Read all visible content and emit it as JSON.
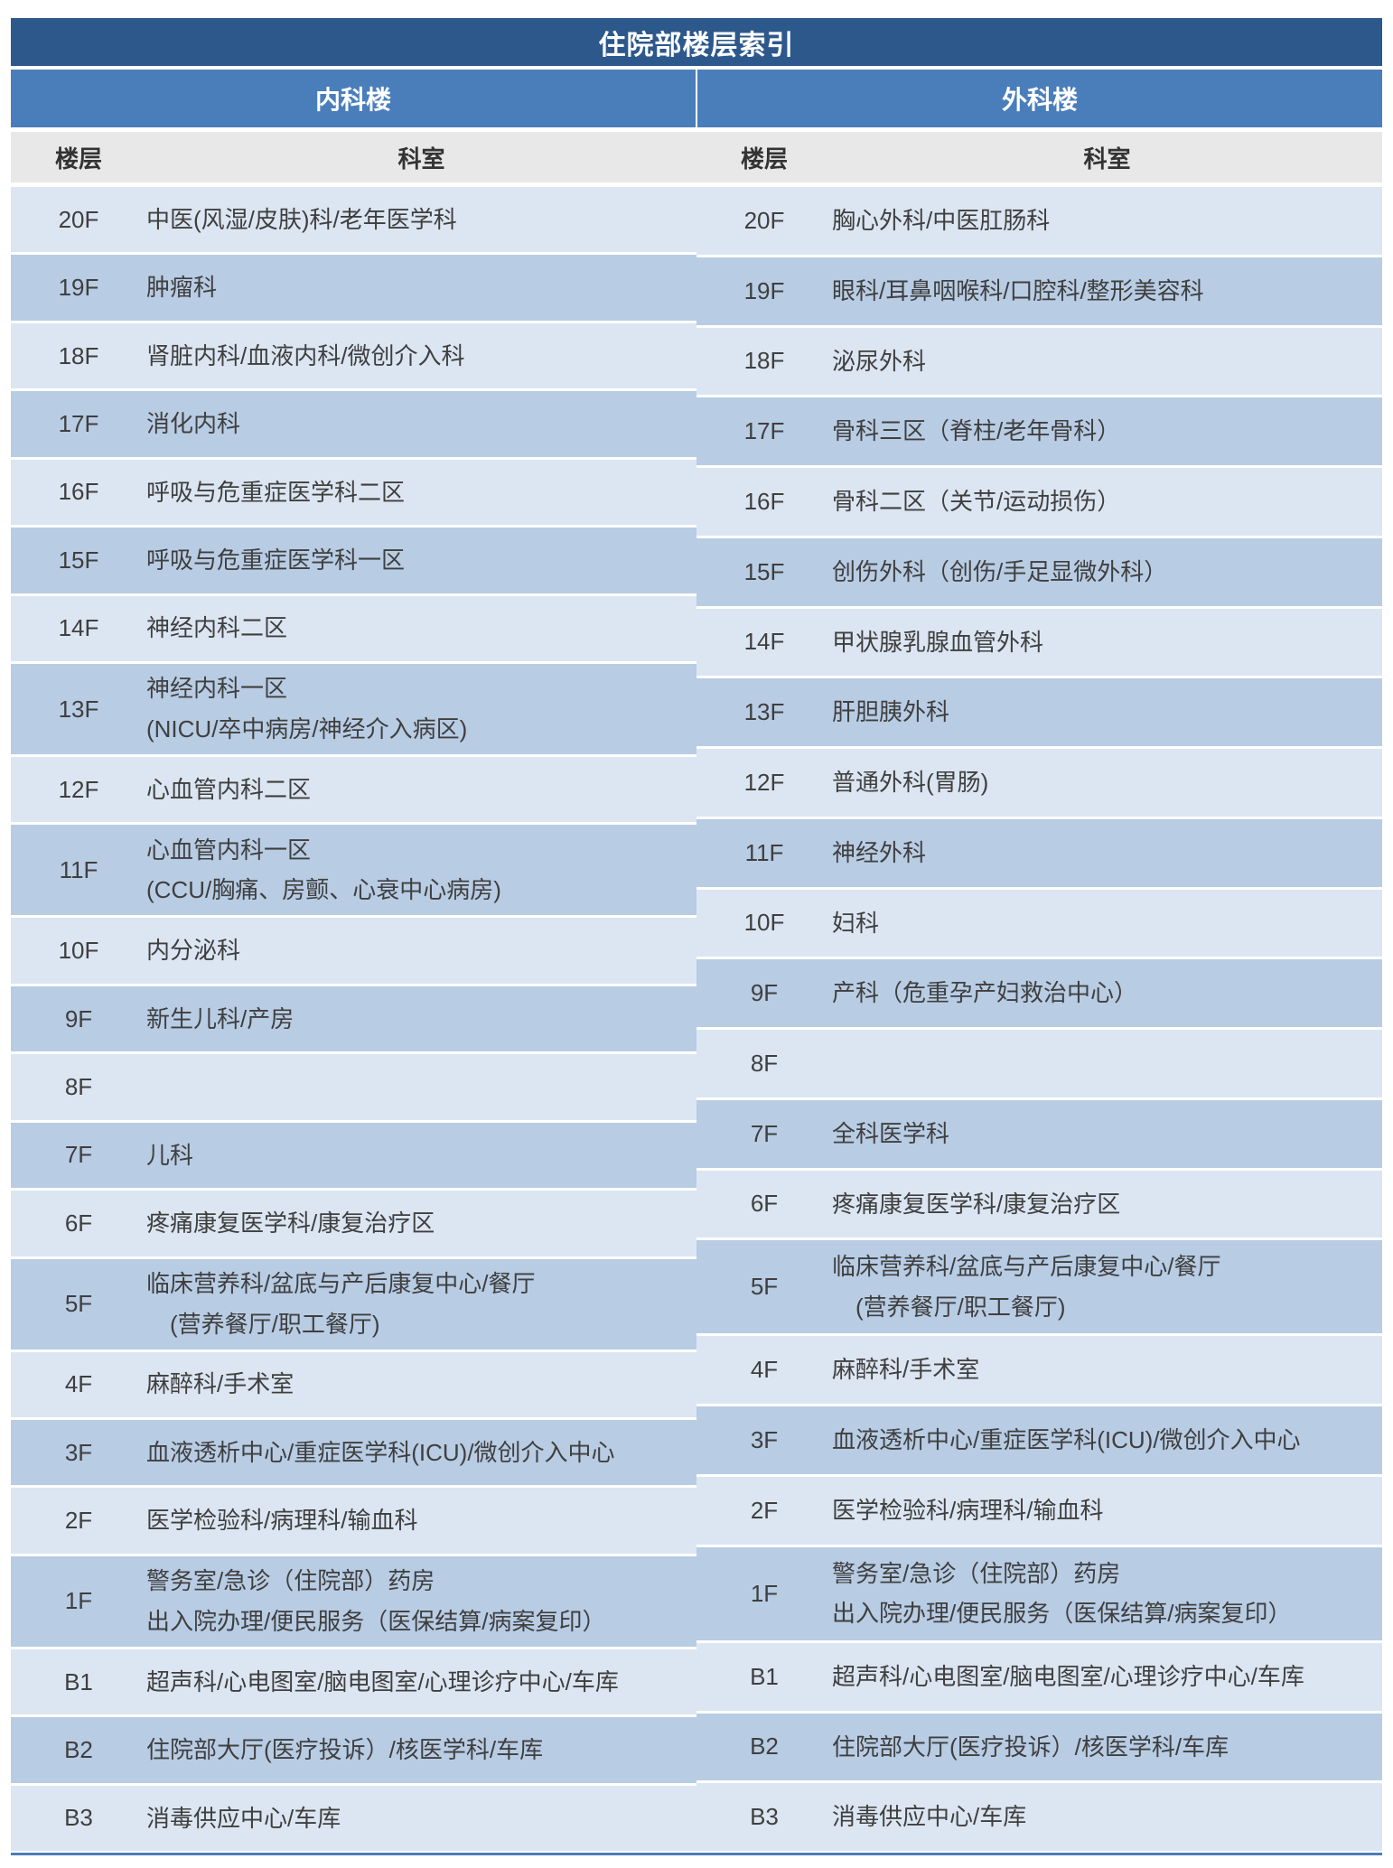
{
  "title": "住院部楼层索引",
  "columns": {
    "floor": "楼层",
    "dept": "科室"
  },
  "left_building": {
    "name": "内科楼",
    "rows": [
      {
        "floor": "20F",
        "dept": "中医(风湿/皮肤)科/老年医学科"
      },
      {
        "floor": "19F",
        "dept": "肿瘤科"
      },
      {
        "floor": "18F",
        "dept": "肾脏内科/血液内科/微创介入科"
      },
      {
        "floor": "17F",
        "dept": "消化内科"
      },
      {
        "floor": "16F",
        "dept": "呼吸与危重症医学科二区"
      },
      {
        "floor": "15F",
        "dept": "呼吸与危重症医学科一区"
      },
      {
        "floor": "14F",
        "dept": "神经内科二区"
      },
      {
        "floor": "13F",
        "dept": "神经内科一区",
        "dept2": "(NICU/卒中病房/神经介入病区)"
      },
      {
        "floor": "12F",
        "dept": "心血管内科二区"
      },
      {
        "floor": "11F",
        "dept": "心血管内科一区",
        "dept2": "(CCU/胸痛、房颤、心衰中心病房)"
      },
      {
        "floor": "10F",
        "dept": "内分泌科"
      },
      {
        "floor": "9F",
        "dept": "新生儿科/产房"
      },
      {
        "floor": "8F",
        "dept": ""
      },
      {
        "floor": "7F",
        "dept": "儿科"
      },
      {
        "floor": "6F",
        "dept": "疼痛康复医学科/康复治疗区"
      },
      {
        "floor": "5F",
        "dept": "临床营养科/盆底与产后康复中心/餐厅",
        "dept2": "　(营养餐厅/职工餐厅)"
      },
      {
        "floor": "4F",
        "dept": "麻醉科/手术室"
      },
      {
        "floor": "3F",
        "dept": "血液透析中心/重症医学科(ICU)/微创介入中心"
      },
      {
        "floor": "2F",
        "dept": "医学检验科/病理科/输血科"
      },
      {
        "floor": "1F",
        "dept": "警务室/急诊（住院部）药房",
        "dept2": "出入院办理/便民服务（医保结算/病案复印）"
      },
      {
        "floor": "B1",
        "dept": "超声科/心电图室/脑电图室/心理诊疗中心/车库"
      },
      {
        "floor": "B2",
        "dept": "住院部大厅(医疗投诉）/核医学科/车库"
      },
      {
        "floor": "B3",
        "dept": "消毒供应中心/车库"
      }
    ]
  },
  "right_building": {
    "name": "外科楼",
    "rows": [
      {
        "floor": "20F",
        "dept": "胸心外科/中医肛肠科"
      },
      {
        "floor": "19F",
        "dept": "眼科/耳鼻咽喉科/口腔科/整形美容科"
      },
      {
        "floor": "18F",
        "dept": "泌尿外科"
      },
      {
        "floor": "17F",
        "dept": "骨科三区（脊柱/老年骨科）"
      },
      {
        "floor": "16F",
        "dept": "骨科二区（关节/运动损伤）"
      },
      {
        "floor": "15F",
        "dept": "创伤外科（创伤/手足显微外科）"
      },
      {
        "floor": "14F",
        "dept": "甲状腺乳腺血管外科"
      },
      {
        "floor": "13F",
        "dept": "肝胆胰外科"
      },
      {
        "floor": "12F",
        "dept": "普通外科(胃肠)"
      },
      {
        "floor": "11F",
        "dept": "神经外科"
      },
      {
        "floor": "10F",
        "dept": "妇科"
      },
      {
        "floor": "9F",
        "dept": "产科（危重孕产妇救治中心）"
      },
      {
        "floor": "8F",
        "dept": ""
      },
      {
        "floor": "7F",
        "dept": "全科医学科"
      },
      {
        "floor": "6F",
        "dept": "疼痛康复医学科/康复治疗区"
      },
      {
        "floor": "5F",
        "dept": "临床营养科/盆底与产后康复中心/餐厅",
        "dept2": "　(营养餐厅/职工餐厅)"
      },
      {
        "floor": "4F",
        "dept": "麻醉科/手术室"
      },
      {
        "floor": "3F",
        "dept": "血液透析中心/重症医学科(ICU)/微创介入中心"
      },
      {
        "floor": "2F",
        "dept": "医学检验科/病理科/输血科"
      },
      {
        "floor": "1F",
        "dept": "警务室/急诊（住院部）药房",
        "dept2": "出入院办理/便民服务（医保结算/病案复印）"
      },
      {
        "floor": "B1",
        "dept": "超声科/心电图室/脑电图室/心理诊疗中心/车库"
      },
      {
        "floor": "B2",
        "dept": "住院部大厅(医疗投诉）/核医学科/车库"
      },
      {
        "floor": "B3",
        "dept": "消毒供应中心/车库"
      }
    ]
  },
  "colors": {
    "title_bg": "#2D588B",
    "building_bg": "#4A7EBB",
    "colhead_bg": "#E8E8E8",
    "row_light": "#DCE6F2",
    "row_dark": "#B8CCE4",
    "text_dark": "#3F3F3F",
    "bottom_line": "#4A7EBB"
  }
}
